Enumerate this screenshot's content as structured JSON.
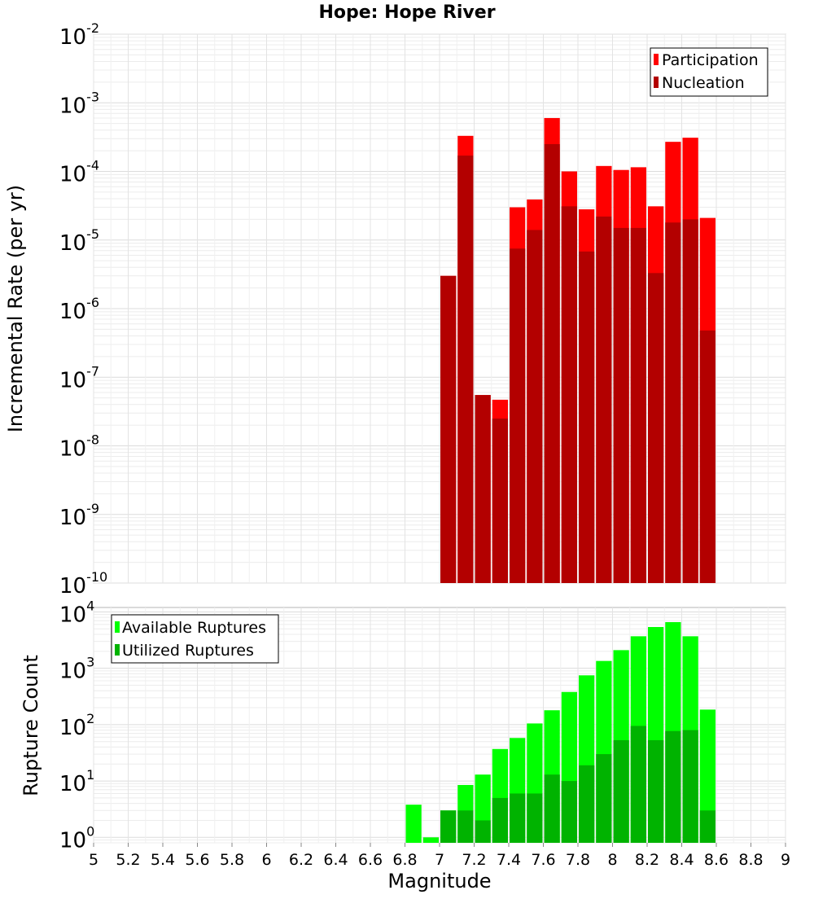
{
  "chart_data": [
    {
      "type": "bar",
      "title": "Hope: Hope River",
      "xlabel": "",
      "ylabel": "Incremental Rate (per yr)",
      "yscale": "log",
      "ylim": [
        1e-10,
        0.01
      ],
      "xlim": [
        5,
        9
      ],
      "bin_width": 0.1,
      "grid": true,
      "legend_position": "top-right",
      "y_tick_labels": [
        {
          "base": "10",
          "exp": "-10"
        },
        {
          "base": "10",
          "exp": "-9"
        },
        {
          "base": "10",
          "exp": "-8"
        },
        {
          "base": "10",
          "exp": "-7"
        },
        {
          "base": "10",
          "exp": "-6"
        },
        {
          "base": "10",
          "exp": "-5"
        },
        {
          "base": "10",
          "exp": "-4"
        },
        {
          "base": "10",
          "exp": "-3"
        },
        {
          "base": "10",
          "exp": "-2"
        }
      ],
      "x": [
        7.05,
        7.15,
        7.25,
        7.35,
        7.45,
        7.55,
        7.65,
        7.75,
        7.85,
        7.95,
        8.05,
        8.15,
        8.25,
        8.35,
        8.45,
        8.55
      ],
      "series": [
        {
          "name": "Participation",
          "color": "#ff0000",
          "values": [
            3e-06,
            0.00033,
            5.5e-08,
            4.7e-08,
            3e-05,
            3.9e-05,
            0.0006,
            0.0001,
            2.8e-05,
            0.00012,
            0.000105,
            0.000115,
            3.1e-05,
            0.00027,
            0.00031,
            2.1e-05
          ]
        },
        {
          "name": "Nucleation",
          "color": "#b30000",
          "values": [
            3e-06,
            0.00017,
            5.5e-08,
            2.5e-08,
            7.5e-06,
            1.4e-05,
            0.00025,
            3.1e-05,
            6.8e-06,
            2.2e-05,
            1.5e-05,
            1.5e-05,
            3.3e-06,
            1.8e-05,
            2e-05,
            4.8e-07
          ]
        }
      ]
    },
    {
      "type": "bar",
      "title": "",
      "xlabel": "Magnitude",
      "ylabel": "Rupture Count",
      "yscale": "log",
      "ylim": [
        0.8,
        12000
      ],
      "xlim": [
        5,
        9
      ],
      "bin_width": 0.1,
      "grid": true,
      "legend_position": "top-left",
      "y_tick_labels": [
        {
          "base": "10",
          "exp": "0"
        },
        {
          "base": "10",
          "exp": "1"
        },
        {
          "base": "10",
          "exp": "2"
        },
        {
          "base": "10",
          "exp": "3"
        },
        {
          "base": "10",
          "exp": "4"
        }
      ],
      "x_tick_labels": [
        "5",
        "5.2",
        "5.4",
        "5.6",
        "5.8",
        "6",
        "6.2",
        "6.4",
        "6.6",
        "6.8",
        "7",
        "7.2",
        "7.4",
        "7.6",
        "7.8",
        "8",
        "8.2",
        "8.4",
        "8.6",
        "8.8",
        "9"
      ],
      "x": [
        6.85,
        6.95,
        7.05,
        7.15,
        7.25,
        7.35,
        7.45,
        7.55,
        7.65,
        7.75,
        7.85,
        7.95,
        8.05,
        8.15,
        8.25,
        8.35,
        8.45,
        8.55
      ],
      "series": [
        {
          "name": "Available Ruptures",
          "color": "#00ff00",
          "values": [
            3.8,
            1,
            3,
            8.5,
            13,
            37,
            58,
            105,
            180,
            380,
            750,
            1350,
            2100,
            3700,
            5400,
            6600,
            3700,
            185
          ]
        },
        {
          "name": "Utilized Ruptures",
          "color": "#00b300",
          "values": [
            0,
            0,
            3,
            3,
            2,
            5,
            6,
            6,
            13,
            10,
            19,
            30,
            53,
            95,
            53,
            77,
            80,
            3
          ]
        }
      ]
    }
  ]
}
